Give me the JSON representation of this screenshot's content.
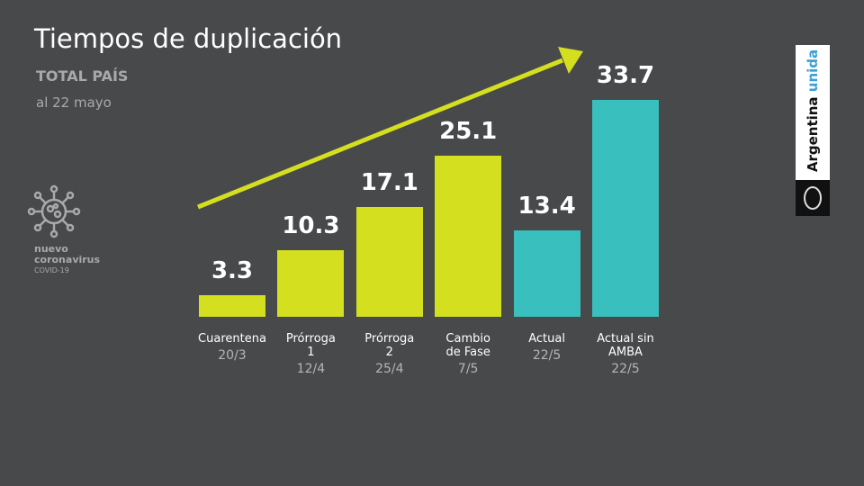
{
  "chart_data": {
    "type": "bar",
    "title": "Tiempos de duplicación",
    "subtitle": "TOTAL PAÍS",
    "date_note": "al 22 mayo",
    "categories": [
      "Cuarentena",
      "Prórroga 1",
      "Prórroga 2",
      "Cambio de Fase",
      "Actual",
      "Actual sin AMBA"
    ],
    "dates": [
      "20/3",
      "12/4",
      "25/4",
      "7/5",
      "22/5",
      "22/5"
    ],
    "values": [
      3.3,
      10.3,
      17.1,
      25.1,
      13.4,
      33.7
    ],
    "colors": [
      "#d4df20",
      "#d4df20",
      "#d4df20",
      "#d4df20",
      "#39bfbd",
      "#39bfbd"
    ]
  },
  "branding": {
    "virus_lines": [
      "nuevo",
      "coronavirus"
    ],
    "virus_code": "COVID-19",
    "country": "Argentina",
    "motto": "unida"
  }
}
